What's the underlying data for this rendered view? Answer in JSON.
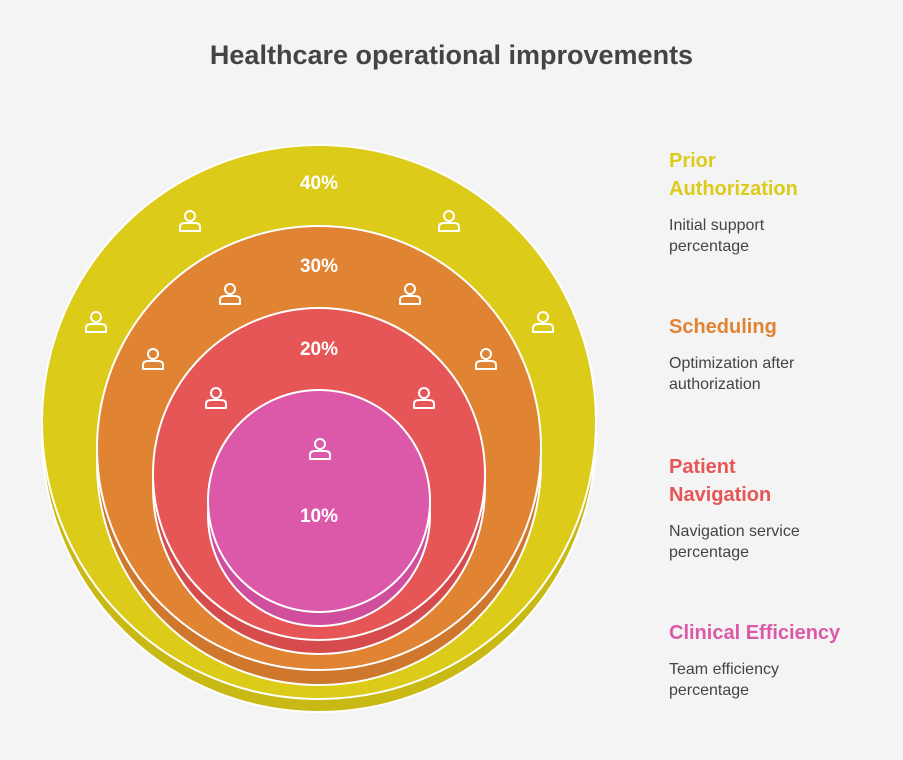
{
  "title": "Healthcare operational improvements",
  "colors": {
    "prior_authorization": "#dccb18",
    "scheduling": "#e08433",
    "patient_navigation": "#e65656",
    "clinical_efficiency": "#dc59a9"
  },
  "rings": [
    {
      "key": "prior_authorization",
      "percent": "40%",
      "icon": "person-icon"
    },
    {
      "key": "scheduling",
      "percent": "30%",
      "icon": "person-icon"
    },
    {
      "key": "patient_navigation",
      "percent": "20%",
      "icon": "person-icon"
    },
    {
      "key": "clinical_efficiency",
      "percent": "10%",
      "icon": "person-icon"
    }
  ],
  "legend": [
    {
      "title_line1": "Prior",
      "title_line2": "Authorization",
      "desc_line1": "Initial support",
      "desc_line2": "percentage"
    },
    {
      "title_line1": "Scheduling",
      "title_line2": "",
      "desc_line1": "Optimization after",
      "desc_line2": "authorization"
    },
    {
      "title_line1": "Patient",
      "title_line2": "Navigation",
      "desc_line1": "Navigation service",
      "desc_line2": "percentage"
    },
    {
      "title_line1": "Clinical Efficiency",
      "title_line2": "",
      "desc_line1": "Team efficiency",
      "desc_line2": "percentage"
    }
  ]
}
